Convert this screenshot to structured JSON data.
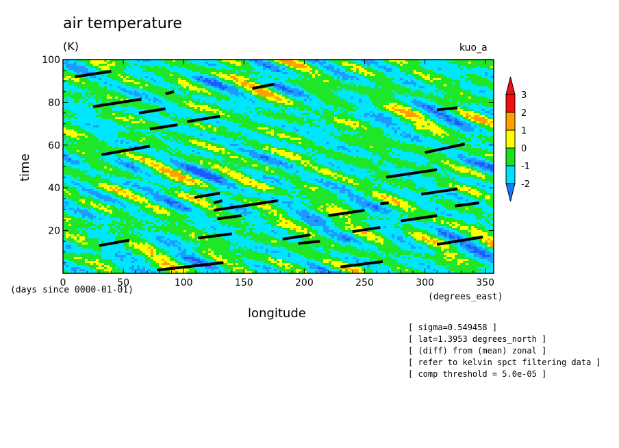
{
  "chart_data": {
    "type": "heatmap",
    "title": "air temperature",
    "units": "(K)",
    "experiment": "kuo_a",
    "xlabel": "longitude",
    "xunit": "(degrees_east)",
    "ylabel": "time",
    "yunit": "(days since 0000-01-01)",
    "xlim": [
      0,
      357
    ],
    "ylim": [
      0,
      100
    ],
    "xticks": [
      0,
      50,
      100,
      150,
      200,
      250,
      300,
      350
    ],
    "yticks": [
      20,
      40,
      60,
      80,
      100
    ],
    "colorbar": {
      "levels": [
        -2,
        -1,
        0,
        1,
        2,
        3
      ],
      "labels": [
        "-2",
        "-1",
        "0",
        "1",
        "2",
        "3"
      ],
      "colors": [
        "#1e78ff",
        "#00e1ff",
        "#1ee11e",
        "#ffff00",
        "#ffa000",
        "#f01010"
      ]
    },
    "field_colors": {
      "below_-2": "#1e5aff",
      "-2_to_-1": "#1e9bff",
      "-1_to_0": "#00e6ff",
      "0_to_1": "#1ee628",
      "1_to_2": "#ffff00",
      "2_to_3": "#ffa000"
    },
    "grid": false,
    "legend": "right",
    "threshold_segments": [
      {
        "x": [
          10,
          40
        ],
        "y": [
          92,
          94.5
        ]
      },
      {
        "x": [
          25,
          65
        ],
        "y": [
          78,
          81.5
        ]
      },
      {
        "x": [
          85,
          92
        ],
        "y": [
          84,
          85
        ]
      },
      {
        "x": [
          63,
          85
        ],
        "y": [
          75,
          77
        ]
      },
      {
        "x": [
          103,
          130
        ],
        "y": [
          71,
          73.5
        ]
      },
      {
        "x": [
          157,
          175
        ],
        "y": [
          86.5,
          88.5
        ]
      },
      {
        "x": [
          72,
          95
        ],
        "y": [
          67.5,
          69.5
        ]
      },
      {
        "x": [
          32,
          72
        ],
        "y": [
          55.5,
          59.5
        ]
      },
      {
        "x": [
          300,
          333
        ],
        "y": [
          56.5,
          60.5
        ]
      },
      {
        "x": [
          310,
          327
        ],
        "y": [
          76.5,
          77.5
        ]
      },
      {
        "x": [
          268,
          310
        ],
        "y": [
          45,
          48.5
        ]
      },
      {
        "x": [
          297,
          327
        ],
        "y": [
          37,
          39.5
        ]
      },
      {
        "x": [
          325,
          345
        ],
        "y": [
          31.5,
          33
        ]
      },
      {
        "x": [
          109,
          130
        ],
        "y": [
          35.5,
          37.5
        ]
      },
      {
        "x": [
          125,
          178
        ],
        "y": [
          29.5,
          34
        ]
      },
      {
        "x": [
          128,
          148
        ],
        "y": [
          25.5,
          27
        ]
      },
      {
        "x": [
          125,
          132
        ],
        "y": [
          33,
          34
        ]
      },
      {
        "x": [
          220,
          250
        ],
        "y": [
          27,
          29.5
        ]
      },
      {
        "x": [
          263,
          270
        ],
        "y": [
          32.5,
          33
        ]
      },
      {
        "x": [
          280,
          310
        ],
        "y": [
          24.5,
          27
        ]
      },
      {
        "x": [
          240,
          263
        ],
        "y": [
          19.5,
          21.5
        ]
      },
      {
        "x": [
          112,
          140
        ],
        "y": [
          16.5,
          18.5
        ]
      },
      {
        "x": [
          182,
          205
        ],
        "y": [
          16,
          18
        ]
      },
      {
        "x": [
          195,
          213
        ],
        "y": [
          14,
          15
        ]
      },
      {
        "x": [
          30,
          55
        ],
        "y": [
          13,
          15.5
        ]
      },
      {
        "x": [
          310,
          348
        ],
        "y": [
          13.5,
          17
        ]
      },
      {
        "x": [
          230,
          265
        ],
        "y": [
          3,
          5.5
        ]
      },
      {
        "x": [
          78,
          133
        ],
        "y": [
          1.5,
          5
        ]
      }
    ]
  },
  "notes": [
    "[ sigma=0.549458 ]",
    "[ lat=1.3953 degrees_north ]",
    "[ (diff) from (mean) zonal ]",
    "[ refer to kelvin spct filtering data ]",
    "[ comp threshold = 5.0e-05 ]"
  ]
}
